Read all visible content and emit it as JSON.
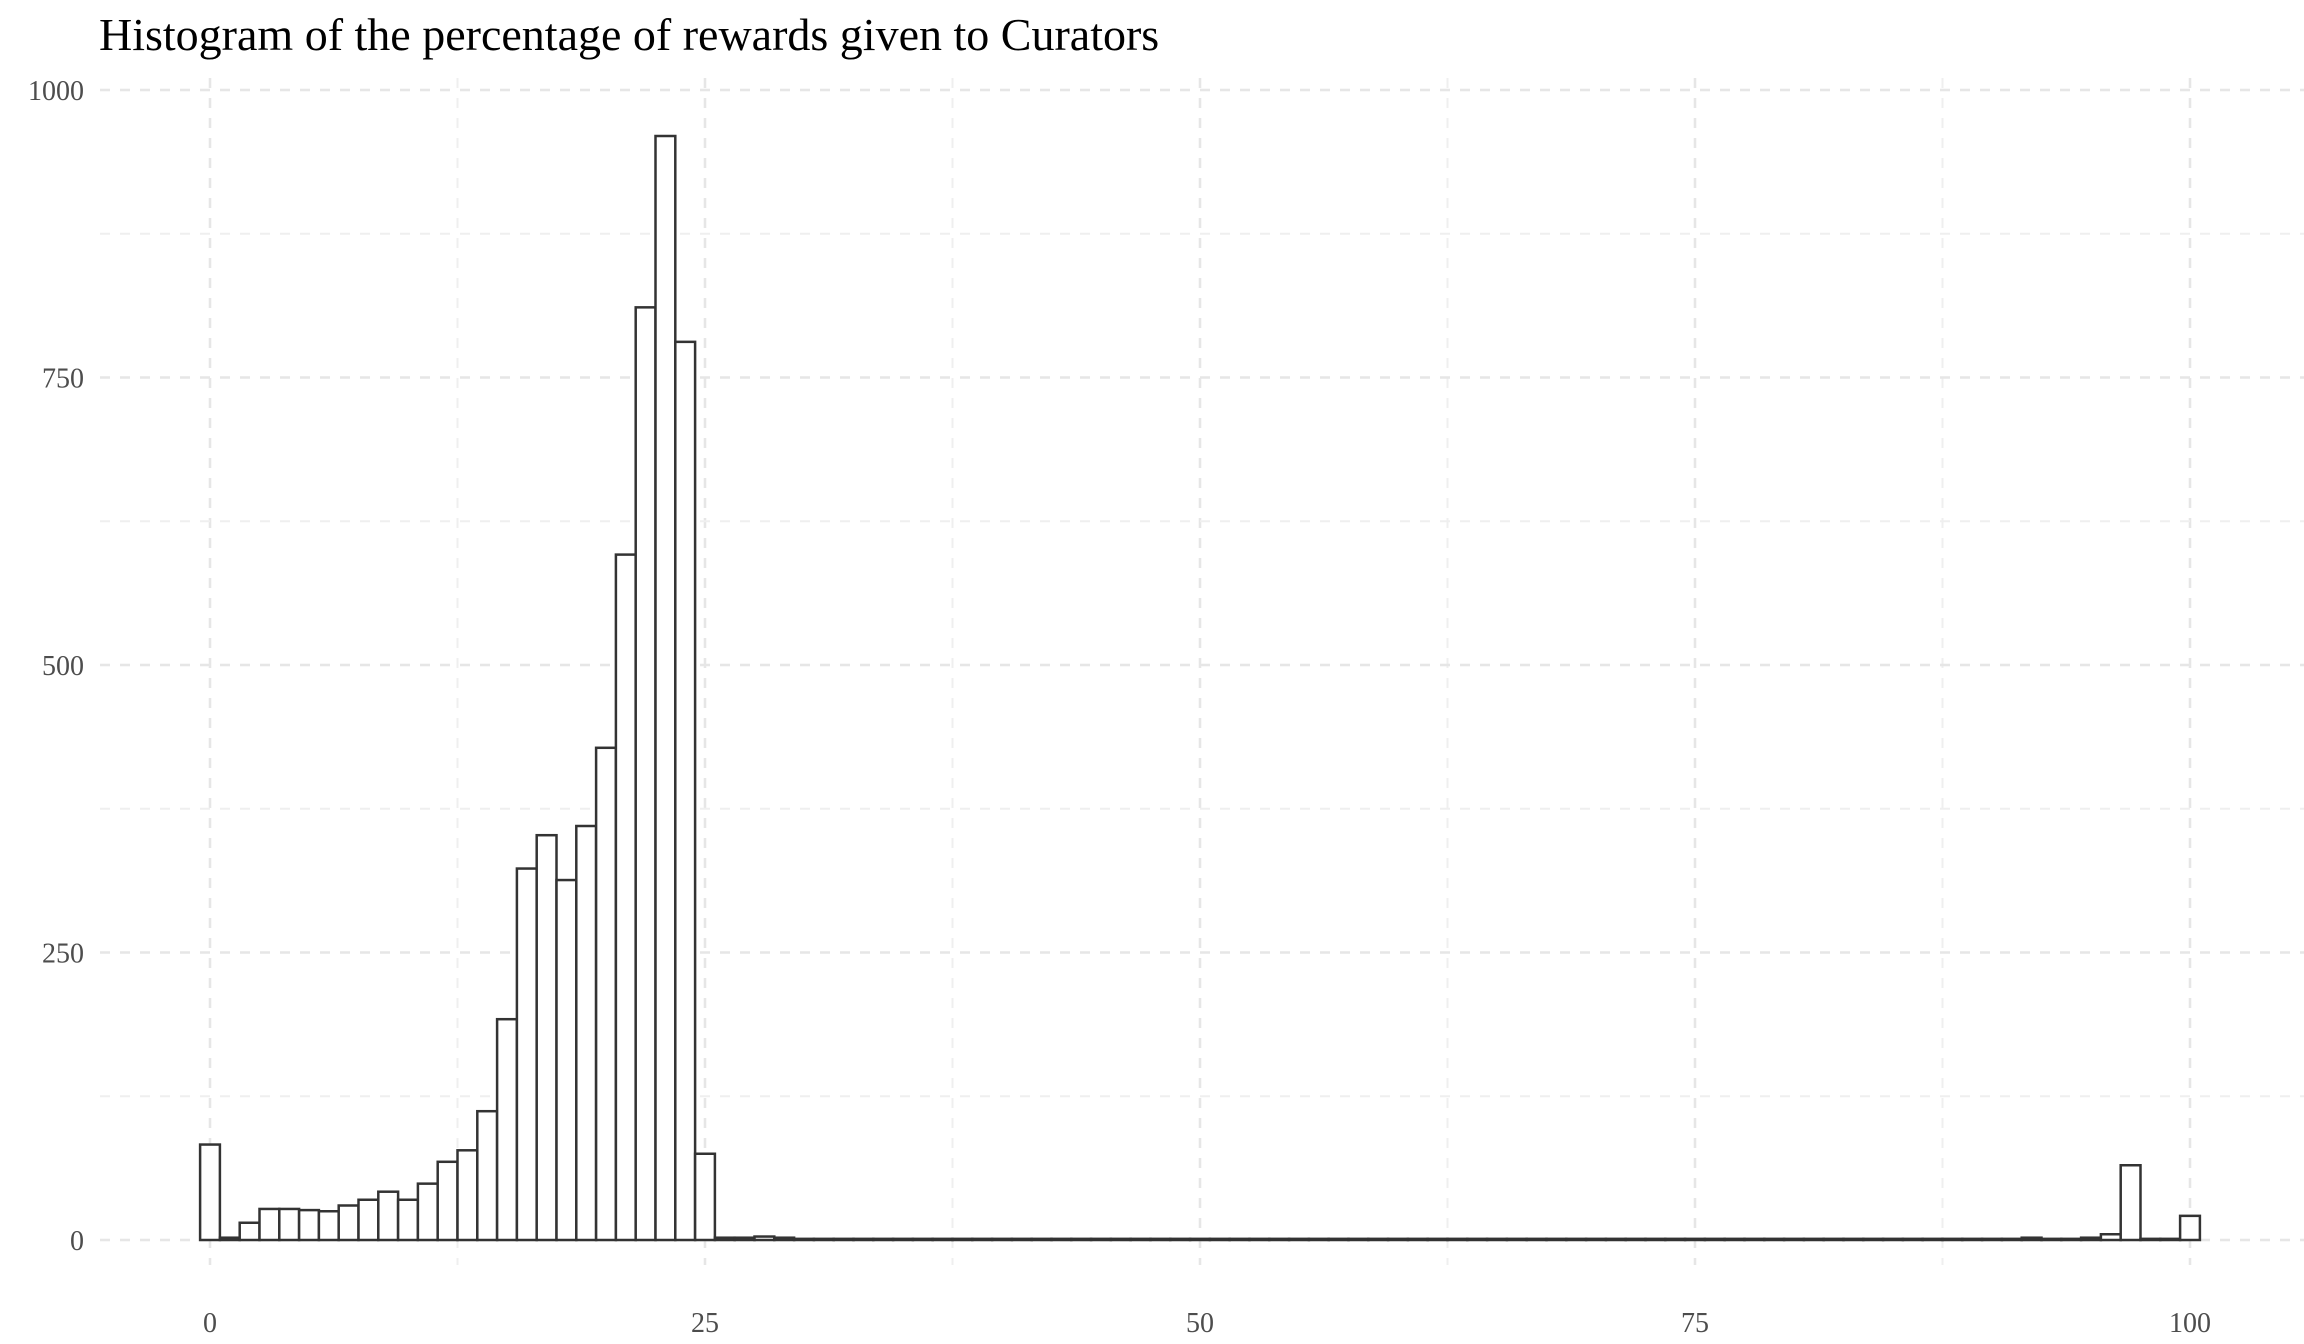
{
  "chart_data": {
    "type": "bar",
    "title": "Histogram of the percentage of rewards given to Curators",
    "xlabel": "",
    "ylabel": "",
    "xlim": [
      -0.5,
      100.5
    ],
    "ylim": [
      0,
      1000
    ],
    "x_ticks": [
      0,
      25,
      50,
      75,
      100
    ],
    "y_ticks": [
      0,
      250,
      500,
      750,
      1000
    ],
    "grid": true,
    "bin_width": 1,
    "bins_start": [
      0,
      1,
      2,
      3,
      4,
      5,
      6,
      7,
      8,
      9,
      10,
      11,
      12,
      13,
      14,
      15,
      16,
      17,
      18,
      19,
      20,
      21,
      22,
      23,
      24,
      25,
      26,
      27,
      28,
      29,
      30,
      31,
      32,
      33,
      34,
      35,
      36,
      37,
      38,
      39,
      40,
      41,
      42,
      43,
      44,
      45,
      46,
      47,
      48,
      49,
      50,
      51,
      52,
      53,
      54,
      55,
      56,
      57,
      58,
      59,
      60,
      61,
      62,
      63,
      64,
      65,
      66,
      67,
      68,
      69,
      70,
      71,
      72,
      73,
      74,
      75,
      76,
      77,
      78,
      79,
      80,
      81,
      82,
      83,
      84,
      85,
      86,
      87,
      88,
      89,
      90,
      91,
      92,
      93,
      94,
      95,
      96,
      97,
      98,
      99,
      100
    ],
    "values": [
      83,
      2,
      15,
      27,
      27,
      26,
      25,
      30,
      35,
      42,
      35,
      49,
      68,
      78,
      112,
      192,
      323,
      352,
      313,
      360,
      428,
      596,
      811,
      960,
      781,
      75,
      2,
      2,
      3,
      2,
      1,
      1,
      1,
      1,
      1,
      1,
      1,
      1,
      1,
      1,
      1,
      1,
      1,
      1,
      1,
      1,
      1,
      1,
      1,
      1,
      1,
      1,
      1,
      1,
      1,
      1,
      1,
      1,
      1,
      1,
      1,
      1,
      1,
      1,
      1,
      1,
      1,
      1,
      1,
      1,
      1,
      1,
      1,
      1,
      1,
      1,
      1,
      1,
      1,
      1,
      1,
      1,
      1,
      1,
      1,
      1,
      1,
      1,
      1,
      1,
      1,
      1,
      2,
      1,
      1,
      2,
      5,
      65,
      1,
      1,
      21
    ]
  }
}
